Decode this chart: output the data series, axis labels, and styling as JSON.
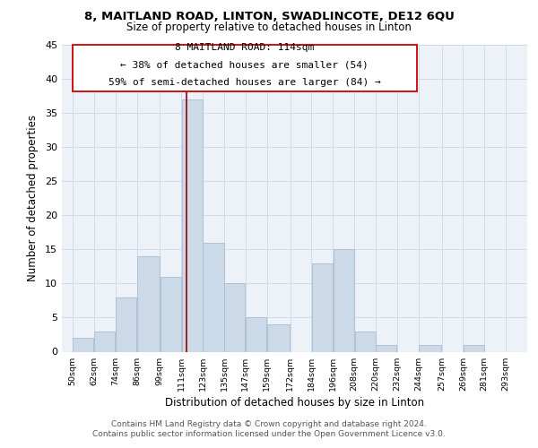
{
  "title": "8, MAITLAND ROAD, LINTON, SWADLINCOTE, DE12 6QU",
  "subtitle": "Size of property relative to detached houses in Linton",
  "xlabel": "Distribution of detached houses by size in Linton",
  "ylabel": "Number of detached properties",
  "bar_color": "#ccd9e8",
  "bar_edgecolor": "#a8bdd0",
  "bar_left_edges": [
    50,
    62,
    74,
    86,
    99,
    111,
    123,
    135,
    147,
    159,
    172,
    184,
    196,
    208,
    220,
    232,
    244,
    257,
    269,
    281
  ],
  "bar_widths": [
    12,
    12,
    12,
    13,
    12,
    12,
    12,
    12,
    12,
    13,
    12,
    12,
    12,
    12,
    12,
    12,
    13,
    12,
    12,
    12
  ],
  "bar_heights": [
    2,
    3,
    8,
    14,
    11,
    37,
    16,
    10,
    5,
    4,
    0,
    13,
    15,
    3,
    1,
    0,
    1,
    0,
    1,
    0
  ],
  "tick_labels": [
    "50sqm",
    "62sqm",
    "74sqm",
    "86sqm",
    "99sqm",
    "111sqm",
    "123sqm",
    "135sqm",
    "147sqm",
    "159sqm",
    "172sqm",
    "184sqm",
    "196sqm",
    "208sqm",
    "220sqm",
    "232sqm",
    "244sqm",
    "257sqm",
    "269sqm",
    "281sqm",
    "293sqm"
  ],
  "tick_positions": [
    50,
    62,
    74,
    86,
    99,
    111,
    123,
    135,
    147,
    159,
    172,
    184,
    196,
    208,
    220,
    232,
    244,
    257,
    269,
    281,
    293
  ],
  "ylim": [
    0,
    45
  ],
  "xlim": [
    44,
    305
  ],
  "property_line_x": 114,
  "property_line_color": "#990000",
  "annot_line1": "8 MAITLAND ROAD: 114sqm",
  "annot_line2": "← 38% of detached houses are smaller (54)",
  "annot_line3": "59% of semi-detached houses are larger (84) →",
  "grid_color": "#d0dae8",
  "background_color": "#edf2f9",
  "footer_line1": "Contains HM Land Registry data © Crown copyright and database right 2024.",
  "footer_line2": "Contains public sector information licensed under the Open Government Licence v3.0.",
  "yticks": [
    0,
    5,
    10,
    15,
    20,
    25,
    30,
    35,
    40,
    45
  ]
}
